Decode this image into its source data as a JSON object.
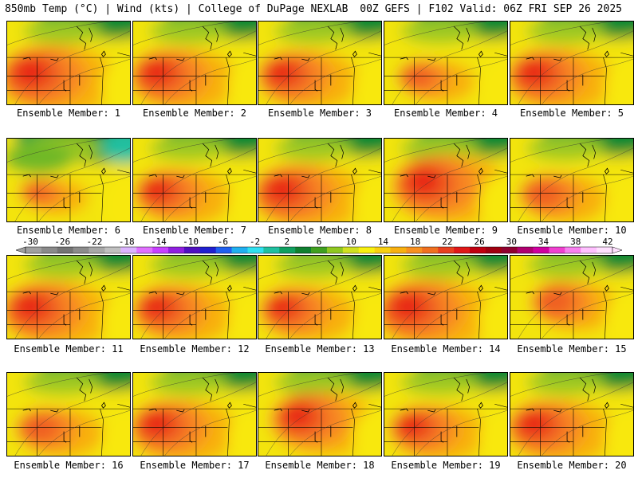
{
  "header": {
    "left": "850mb Temp (°C) | Wind (kts) | College of DuPage NEXLAB",
    "right": "00Z GEFS | F102 Valid: 06Z FRI SEP 26 2025"
  },
  "members": [
    {
      "label": "Ensemble Member: 1",
      "scenario": "hot-west",
      "strength": 1.0
    },
    {
      "label": "Ensemble Member: 2",
      "scenario": "hot-west",
      "strength": 0.9
    },
    {
      "label": "Ensemble Member: 3",
      "scenario": "hot-west",
      "strength": 0.85
    },
    {
      "label": "Ensemble Member: 4",
      "scenario": "warm",
      "strength": 0.6
    },
    {
      "label": "Ensemble Member: 5",
      "scenario": "hot-west",
      "strength": 0.9
    },
    {
      "label": "Ensemble Member: 6",
      "scenario": "cool-north",
      "strength": 0.5
    },
    {
      "label": "Ensemble Member: 7",
      "scenario": "hot-west",
      "strength": 0.8
    },
    {
      "label": "Ensemble Member: 8",
      "scenario": "hot-west",
      "strength": 0.95
    },
    {
      "label": "Ensemble Member: 9",
      "scenario": "hot-center",
      "strength": 1.0
    },
    {
      "label": "Ensemble Member: 10",
      "scenario": "warm",
      "strength": 0.7
    },
    {
      "label": "Ensemble Member: 11",
      "scenario": "hot-west",
      "strength": 0.95
    },
    {
      "label": "Ensemble Member: 12",
      "scenario": "hot-west",
      "strength": 0.85
    },
    {
      "label": "Ensemble Member: 13",
      "scenario": "hot-west",
      "strength": 0.8
    },
    {
      "label": "Ensemble Member: 14",
      "scenario": "hot-west",
      "strength": 1.0
    },
    {
      "label": "Ensemble Member: 15",
      "scenario": "hot-center",
      "strength": 0.7
    },
    {
      "label": "Ensemble Member: 16",
      "scenario": "warm",
      "strength": 0.7
    },
    {
      "label": "Ensemble Member: 17",
      "scenario": "hot-west",
      "strength": 0.9
    },
    {
      "label": "Ensemble Member: 18",
      "scenario": "hot-center",
      "strength": 0.9
    },
    {
      "label": "Ensemble Member: 19",
      "scenario": "warm",
      "strength": 0.8
    },
    {
      "label": "Ensemble Member: 20",
      "scenario": "hot-west",
      "strength": 0.9
    }
  ],
  "colorbar": {
    "ticks": [
      "-30",
      "-26",
      "-22",
      "-18",
      "-14",
      "-10",
      "-6",
      "-2",
      "2",
      "6",
      "10",
      "14",
      "18",
      "22",
      "26",
      "30",
      "34",
      "38",
      "42"
    ],
    "colors": [
      "#a0a0a0",
      "#8a8a8a",
      "#747474",
      "#8c8c8c",
      "#a8a8a8",
      "#c0c0c0",
      "#dcb4ff",
      "#e070ff",
      "#c840ff",
      "#9020e0",
      "#5010c0",
      "#2020d0",
      "#2060f0",
      "#20b0f0",
      "#30e0f0",
      "#20c0a0",
      "#10a060",
      "#108030",
      "#40a020",
      "#90c820",
      "#d0e020",
      "#f8f010",
      "#f8d010",
      "#f8b010",
      "#f89020",
      "#f07020",
      "#e84020",
      "#e01818",
      "#c00010",
      "#a00010",
      "#900030",
      "#b00070",
      "#d000a0",
      "#f040d0",
      "#f880f0",
      "#ffc0ff",
      "#ffe0ff"
    ]
  }
}
